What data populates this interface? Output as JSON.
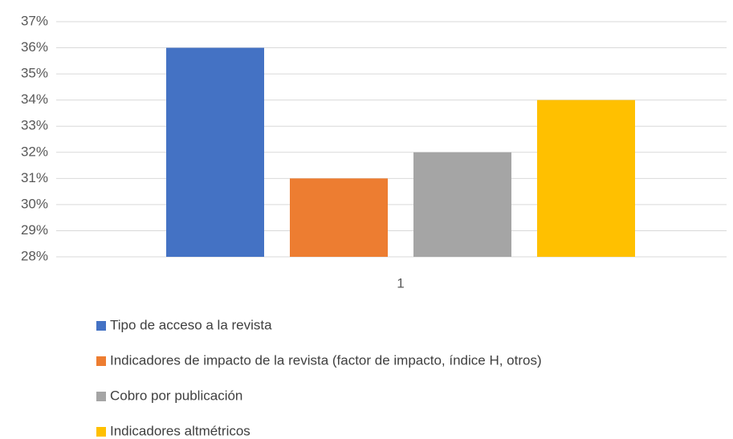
{
  "chart_data": {
    "type": "bar",
    "categories": [
      "1"
    ],
    "series": [
      {
        "name": "Tipo de acceso a la revista",
        "color": "#4472c4",
        "values": [
          36
        ]
      },
      {
        "name": "Indicadores de impacto de la revista (factor de impacto, índice H, otros)",
        "color": "#ed7d31",
        "values": [
          31
        ]
      },
      {
        "name": "Cobro por publicación",
        "color": "#a5a5a5",
        "values": [
          32
        ]
      },
      {
        "name": "Indicadores altmétricos",
        "color": "#ffc000",
        "values": [
          34
        ]
      }
    ],
    "ylim": [
      28,
      37
    ],
    "yticks": [
      {
        "value": 28,
        "label": "28%"
      },
      {
        "value": 29,
        "label": "29%"
      },
      {
        "value": 30,
        "label": "30%"
      },
      {
        "value": 31,
        "label": "31%"
      },
      {
        "value": 32,
        "label": "32%"
      },
      {
        "value": 33,
        "label": "33%"
      },
      {
        "value": 34,
        "label": "34%"
      },
      {
        "value": 35,
        "label": "35%"
      },
      {
        "value": 36,
        "label": "36%"
      },
      {
        "value": 37,
        "label": "37%"
      }
    ],
    "grid": true,
    "legend": "bottom"
  }
}
